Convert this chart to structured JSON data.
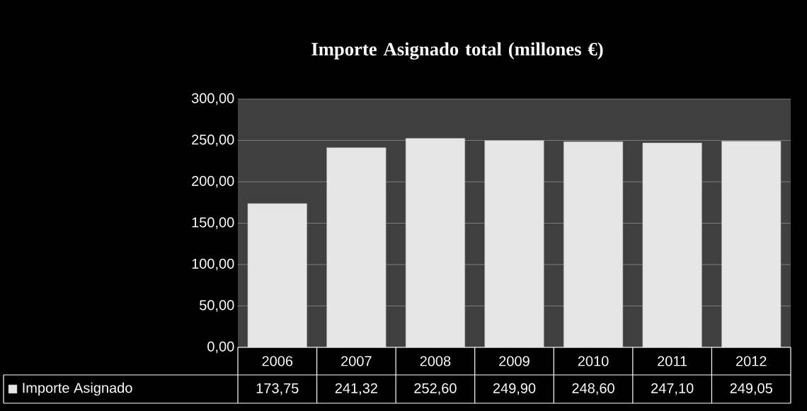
{
  "chart_data": {
    "type": "bar",
    "title": "Importe Asignado total (millones €)",
    "categories": [
      "2006",
      "2007",
      "2008",
      "2009",
      "2010",
      "2011",
      "2012"
    ],
    "series": [
      {
        "name": "Importe Asignado",
        "color": "#e6e6e6",
        "values": [
          173.75,
          241.32,
          252.6,
          249.9,
          248.6,
          247.1,
          249.05
        ],
        "value_labels": [
          "173,75",
          "241,32",
          "252,60",
          "249,90",
          "248,60",
          "247,10",
          "249,05"
        ]
      }
    ],
    "ylim": [
      0,
      300
    ],
    "yticks": [
      {
        "value": 0,
        "label": "0,00"
      },
      {
        "value": 50,
        "label": "50,00"
      },
      {
        "value": 100,
        "label": "100,00"
      },
      {
        "value": 150,
        "label": "150,00"
      },
      {
        "value": 200,
        "label": "200,00"
      },
      {
        "value": 250,
        "label": "250,00"
      },
      {
        "value": 300,
        "label": "300,00"
      }
    ],
    "grid": "y",
    "legend": "bottom"
  }
}
